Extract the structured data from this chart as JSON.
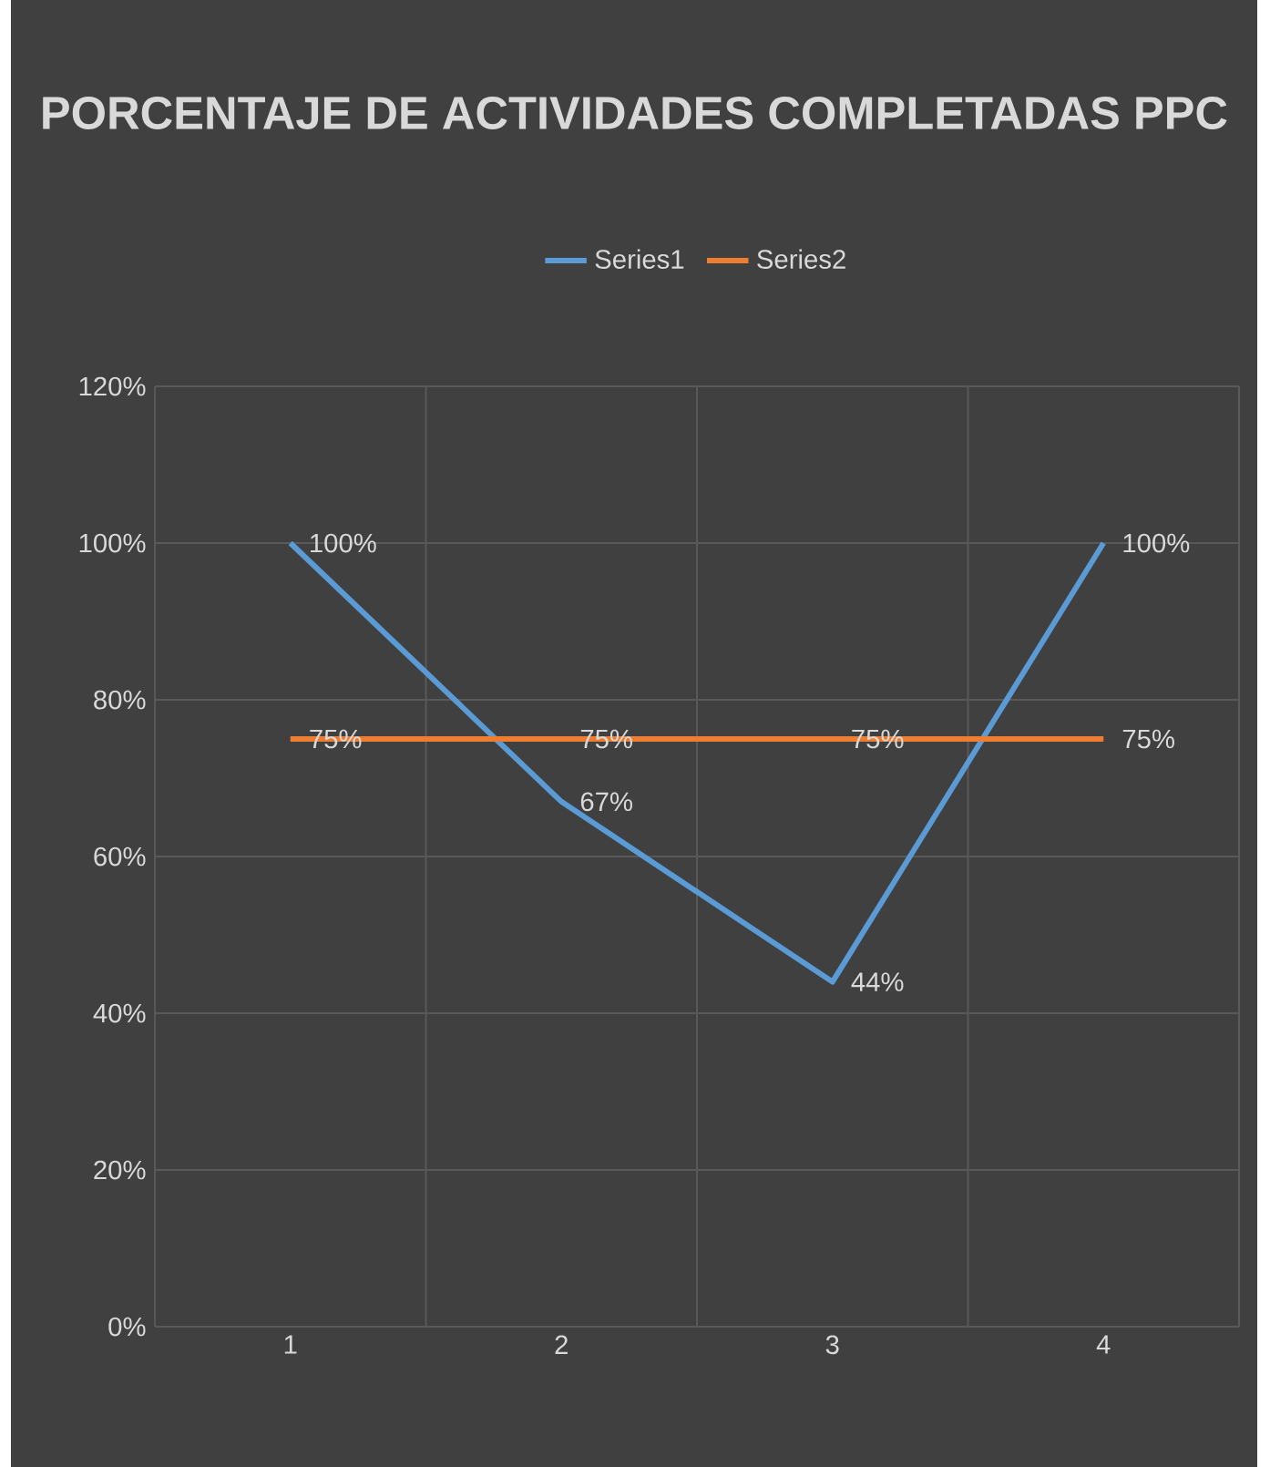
{
  "chart_data": {
    "type": "line",
    "title": "PORCENTAJE DE ACTIVIDADES COMPLETADAS PPC",
    "categories": [
      "1",
      "2",
      "3",
      "4"
    ],
    "series": [
      {
        "name": "Series1",
        "color": "#5b9bd5",
        "values": [
          100,
          67,
          44,
          100
        ],
        "value_labels": [
          "100%",
          "67%",
          "44%",
          "100%"
        ]
      },
      {
        "name": "Series2",
        "color": "#ed7d31",
        "values": [
          75,
          75,
          75,
          75
        ],
        "value_labels": [
          "75%",
          "75%",
          "75%",
          "75%"
        ]
      }
    ],
    "ylim": [
      0,
      120
    ],
    "yticks": [
      {
        "value": 0,
        "label": "0%"
      },
      {
        "value": 20,
        "label": "20%"
      },
      {
        "value": 40,
        "label": "40%"
      },
      {
        "value": 60,
        "label": "60%"
      },
      {
        "value": 80,
        "label": "80%"
      },
      {
        "value": 100,
        "label": "100%"
      },
      {
        "value": 120,
        "label": "120%"
      }
    ],
    "grid": true,
    "legend": "top",
    "marker": "none",
    "line_style": "solid"
  }
}
